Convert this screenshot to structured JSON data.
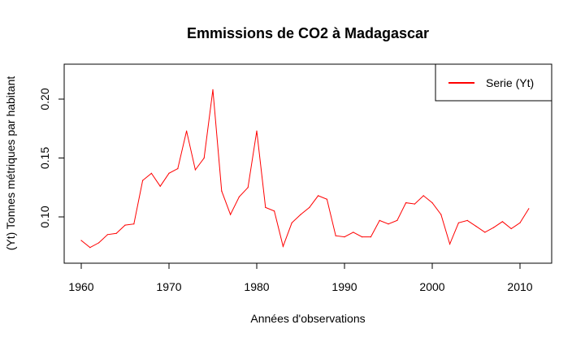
{
  "chart_data": {
    "type": "line",
    "title": "Emmissions de CO2 à Madagascar",
    "xlabel": "Années d'observations",
    "ylabel": "(Yt) Tonnes métriques par habitant",
    "xlim": [
      1960,
      2011
    ],
    "ylim": [
      0.072,
      0.228
    ],
    "xticks": [
      1960,
      1970,
      1980,
      1990,
      2000,
      2010
    ],
    "yticks": [
      0.1,
      0.15,
      0.2
    ],
    "ytick_labels": [
      "0.10",
      "0.15",
      "0.20"
    ],
    "grid": false,
    "legend_position": "top-right",
    "series": [
      {
        "name": "Serie (Yt)",
        "color": "#ff0000",
        "x": [
          1960,
          1961,
          1962,
          1963,
          1964,
          1965,
          1966,
          1967,
          1968,
          1969,
          1970,
          1971,
          1972,
          1973,
          1974,
          1975,
          1976,
          1977,
          1978,
          1979,
          1980,
          1981,
          1982,
          1983,
          1984,
          1985,
          1986,
          1987,
          1988,
          1989,
          1990,
          1991,
          1992,
          1993,
          1994,
          1995,
          1996,
          1997,
          1998,
          1999,
          2000,
          2001,
          2002,
          2003,
          2004,
          2005,
          2006,
          2007,
          2008,
          2009,
          2010,
          2011
        ],
        "values": [
          0.08,
          0.074,
          0.078,
          0.085,
          0.086,
          0.093,
          0.094,
          0.131,
          0.137,
          0.126,
          0.137,
          0.141,
          0.173,
          0.14,
          0.15,
          0.208,
          0.122,
          0.102,
          0.117,
          0.125,
          0.173,
          0.108,
          0.105,
          0.075,
          0.095,
          0.102,
          0.108,
          0.118,
          0.115,
          0.084,
          0.083,
          0.087,
          0.083,
          0.083,
          0.097,
          0.094,
          0.097,
          0.112,
          0.111,
          0.118,
          0.112,
          0.102,
          0.077,
          0.095,
          0.097,
          0.092,
          0.087,
          0.091,
          0.096,
          0.09,
          0.095,
          0.107
        ]
      }
    ]
  }
}
